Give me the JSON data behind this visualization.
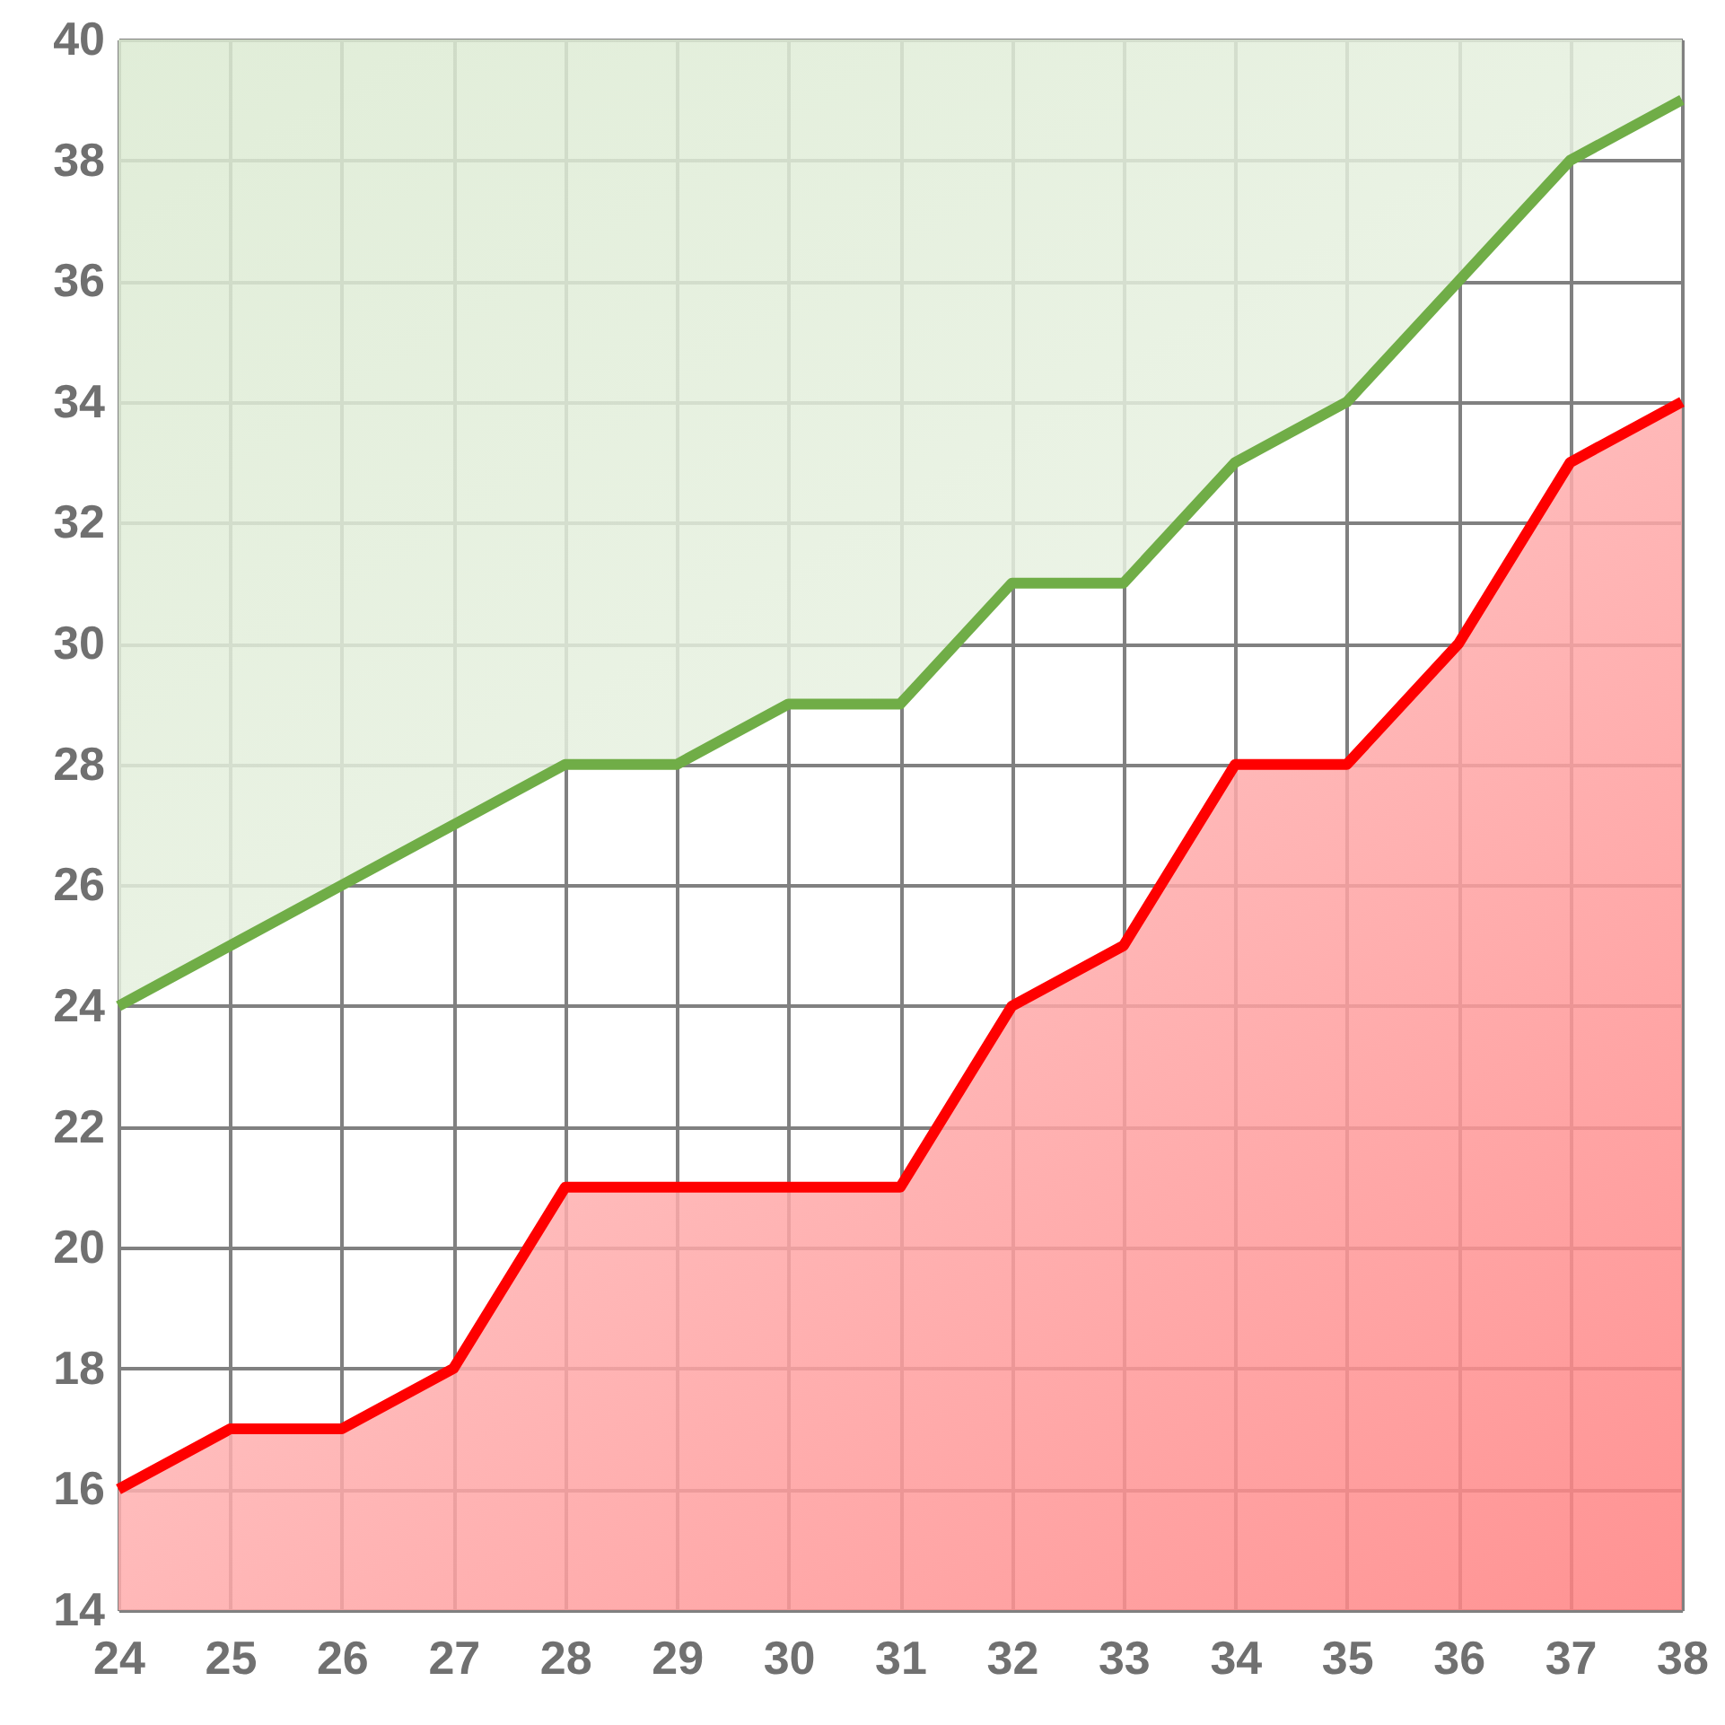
{
  "chart_data": {
    "type": "line",
    "x": [
      24,
      25,
      26,
      27,
      28,
      29,
      30,
      31,
      32,
      33,
      34,
      35,
      36,
      37,
      38
    ],
    "series": [
      {
        "color": "#70ad47",
        "values": [
          24,
          25,
          26,
          27,
          28,
          28,
          29,
          29,
          31,
          31,
          33,
          34,
          36,
          38,
          39
        ],
        "lower": [
          24,
          25,
          26,
          27,
          28,
          28,
          29,
          29,
          31,
          31,
          33,
          34,
          36,
          38,
          39
        ],
        "upper": [
          40,
          40,
          40,
          40,
          40,
          40,
          40,
          40,
          40,
          40,
          40,
          40,
          40,
          40,
          40
        ]
      },
      {
        "type": "area",
        "color": "#ff0000",
        "values": [
          16,
          17,
          17,
          18,
          21,
          21,
          21,
          21,
          24,
          25,
          28,
          28,
          30,
          33,
          34
        ]
      }
    ],
    "xlim": [
      24,
      38
    ],
    "xticks": [
      24,
      25,
      26,
      27,
      28,
      29,
      30,
      31,
      32,
      33,
      34,
      35,
      36,
      37,
      38
    ],
    "ylim": [
      14,
      40
    ],
    "yticks": [
      14,
      16,
      18,
      20,
      22,
      24,
      26,
      28,
      30,
      32,
      34,
      36,
      38,
      40
    ],
    "grid": true,
    "marker": "none",
    "line_style": "solid"
  }
}
